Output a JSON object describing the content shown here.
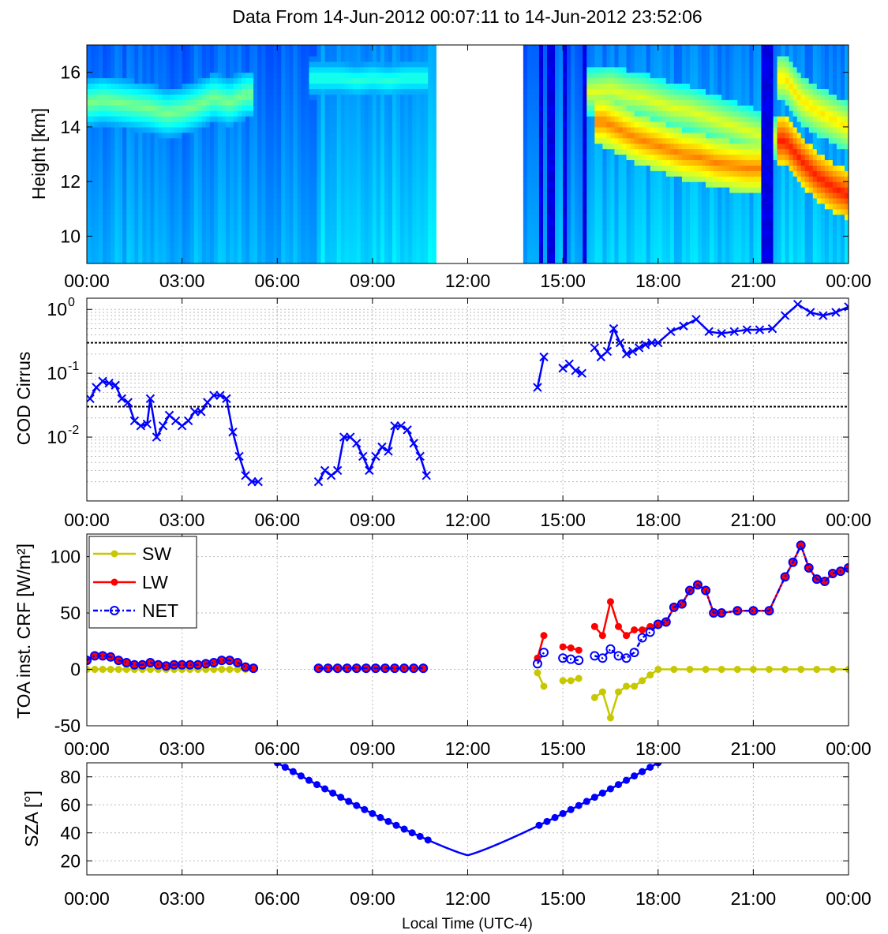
{
  "title": "Data From 14-Jun-2012 00:07:11 to 14-Jun-2012 23:52:06",
  "xlabel": "Local Time (UTC-4)",
  "x_tick_labels": [
    "00:00",
    "03:00",
    "06:00",
    "09:00",
    "12:00",
    "15:00",
    "18:00",
    "21:00",
    "00:00"
  ],
  "colors": {
    "blue": "#0000ff",
    "red": "#ff0000",
    "olive": "#c8c800"
  },
  "chart_data": [
    {
      "type": "heatmap",
      "ylabel": "Height [km]",
      "xlim_hours": [
        0,
        24
      ],
      "ylim": [
        9,
        17
      ],
      "y_ticks": [
        10,
        12,
        14,
        16
      ],
      "missing_interval_hours": [
        11.0,
        13.8
      ],
      "colormap": "jet",
      "cloud_layers": [
        {
          "t": [
            0.1,
            0.5,
            1.0,
            1.5,
            2.0,
            2.5,
            3.0,
            3.5,
            4.0,
            4.5,
            5.0
          ],
          "z": [
            14.9,
            15.0,
            14.9,
            14.8,
            14.7,
            14.5,
            14.6,
            14.8,
            15.1,
            14.9,
            15.2
          ],
          "v": 0.5
        },
        {
          "t": [
            7.3,
            8.0,
            8.5,
            9.0,
            9.5,
            10.0,
            10.5
          ],
          "z": [
            15.8,
            15.8,
            15.7,
            15.8,
            15.7,
            15.8,
            15.8
          ],
          "v": 0.42
        },
        {
          "t": [
            16.3,
            16.8,
            17.3,
            17.8,
            18.3,
            18.8,
            19.3,
            19.8,
            20.3,
            20.8,
            21.3
          ],
          "z": [
            14.2,
            13.9,
            13.6,
            13.4,
            13.2,
            13.0,
            12.9,
            12.7,
            12.6,
            12.5,
            12.5
          ],
          "v": 0.75
        },
        {
          "t": [
            16.0,
            16.5,
            17.0,
            17.5,
            18.0,
            18.5,
            19.0,
            19.5,
            20.0,
            20.5,
            21.0,
            21.5
          ],
          "z": [
            15.3,
            15.4,
            15.2,
            15.1,
            14.9,
            14.7,
            14.6,
            14.4,
            14.2,
            14.0,
            13.8,
            13.6
          ],
          "v": 0.6
        },
        {
          "t": [
            22.0,
            22.5,
            23.0,
            23.5,
            24.0
          ],
          "z": [
            13.5,
            12.8,
            12.2,
            11.8,
            11.5
          ],
          "v": 0.85
        },
        {
          "t": [
            22.0,
            22.5,
            23.0,
            23.5,
            24.0
          ],
          "z": [
            15.8,
            15.0,
            14.6,
            14.3,
            14.0
          ],
          "v": 0.65
        }
      ]
    },
    {
      "type": "line",
      "ylabel": "COD Cirrus",
      "yscale": "log",
      "ylim": [
        0.001,
        1.5
      ],
      "y_ticks": [
        0.01,
        0.1,
        1
      ],
      "y_tick_base": "10",
      "y_tick_exponents": [
        "-2",
        "-1",
        "0"
      ],
      "reference_lines": [
        0.03,
        0.3
      ],
      "marker": "x",
      "color": "#0000ff",
      "series": [
        {
          "x": [
            0.1,
            0.3,
            0.5,
            0.7,
            0.9,
            1.1,
            1.3,
            1.5,
            1.7,
            1.9,
            2.0,
            2.2,
            2.4,
            2.6,
            2.8,
            3.0,
            3.2,
            3.4,
            3.6,
            3.8,
            4.0,
            4.2,
            4.4,
            4.6,
            4.8,
            5.0,
            5.2,
            5.4
          ],
          "y": [
            0.04,
            0.06,
            0.075,
            0.07,
            0.065,
            0.04,
            0.035,
            0.018,
            0.015,
            0.016,
            0.04,
            0.01,
            0.015,
            0.022,
            0.018,
            0.015,
            0.018,
            0.025,
            0.025,
            0.035,
            0.045,
            0.045,
            0.04,
            0.012,
            0.005,
            0.0025,
            0.002,
            0.002
          ]
        },
        {
          "x": [
            7.3,
            7.5,
            7.7,
            7.9,
            8.1,
            8.3,
            8.5,
            8.7,
            8.9,
            9.1,
            9.3,
            9.5,
            9.7,
            9.9,
            10.1,
            10.3,
            10.5,
            10.7
          ],
          "y": [
            0.002,
            0.003,
            0.0025,
            0.003,
            0.01,
            0.01,
            0.008,
            0.005,
            0.003,
            0.005,
            0.007,
            0.006,
            0.015,
            0.015,
            0.013,
            0.008,
            0.005,
            0.0025
          ]
        },
        {
          "x": [
            14.2,
            14.4
          ],
          "y": [
            0.06,
            0.18
          ]
        },
        {
          "x": [
            15.0,
            15.2,
            15.4,
            15.6
          ],
          "y": [
            0.12,
            0.14,
            0.11,
            0.1
          ]
        },
        {
          "x": [
            16.0,
            16.2,
            16.4,
            16.6,
            16.8,
            17.0,
            17.2,
            17.4,
            17.6,
            17.8,
            18.0,
            18.4,
            18.8,
            19.2,
            19.6,
            20.0,
            20.4,
            20.8,
            21.2,
            21.6,
            22.0,
            22.4,
            22.8,
            23.2,
            23.6,
            24.0
          ],
          "y": [
            0.25,
            0.18,
            0.22,
            0.5,
            0.3,
            0.2,
            0.22,
            0.25,
            0.28,
            0.3,
            0.3,
            0.45,
            0.55,
            0.7,
            0.45,
            0.42,
            0.45,
            0.48,
            0.48,
            0.5,
            0.8,
            1.2,
            0.9,
            0.8,
            0.9,
            1.1
          ]
        }
      ]
    },
    {
      "type": "line",
      "ylabel": "TOA inst. CRF [W/m²]",
      "ylim": [
        -50,
        120
      ],
      "y_ticks": [
        -50,
        0,
        50,
        100
      ],
      "legend": {
        "placement": "top-left",
        "entries": [
          "SW",
          "LW",
          "NET"
        ]
      },
      "series": [
        {
          "name": "SW",
          "color": "#c8c800",
          "marker": "filled-circle",
          "linestyle": "solid",
          "segments": [
            {
              "x": [
                0.0,
                0.25,
                0.5,
                0.75,
                1.0,
                1.25,
                1.5,
                1.75,
                2.0,
                2.25,
                2.5,
                2.75,
                3.0,
                3.25,
                3.5,
                3.75,
                4.0,
                4.25,
                4.5,
                4.75,
                5.0,
                5.25
              ],
              "y": [
                0,
                0,
                0,
                0,
                0,
                0,
                0,
                0,
                0,
                0,
                0,
                0,
                0,
                0,
                0,
                0,
                0,
                0,
                0,
                0,
                0,
                0
              ]
            },
            {
              "x": [
                7.3,
                7.6,
                7.9,
                8.2,
                8.5,
                8.8,
                9.1,
                9.4,
                9.7,
                10.0,
                10.3,
                10.6
              ],
              "y": [
                0,
                0,
                0,
                0,
                0,
                0,
                0,
                0,
                0,
                0,
                0,
                0
              ]
            },
            {
              "x": [
                14.2,
                14.4
              ],
              "y": [
                -3,
                -15
              ]
            },
            {
              "x": [
                15.0,
                15.25,
                15.5
              ],
              "y": [
                -10,
                -10,
                -8
              ]
            },
            {
              "x": [
                16.0,
                16.25,
                16.5,
                16.75,
                17.0,
                17.25,
                17.5,
                17.75,
                18.0,
                18.5,
                19.0,
                19.5,
                20.0,
                20.5,
                21.0,
                21.5,
                22.0,
                22.5,
                23.0,
                23.5,
                24.0
              ],
              "y": [
                -25,
                -20,
                -43,
                -20,
                -15,
                -15,
                -10,
                -5,
                0,
                0,
                0,
                0,
                0,
                0,
                0,
                0,
                0,
                0,
                0,
                0,
                0
              ]
            }
          ]
        },
        {
          "name": "LW",
          "color": "#ff0000",
          "marker": "filled-circle",
          "linestyle": "solid",
          "segments": [
            {
              "x": [
                0.0,
                0.25,
                0.5,
                0.75,
                1.0,
                1.25,
                1.5,
                1.75,
                2.0,
                2.25,
                2.5,
                2.75,
                3.0,
                3.25,
                3.5,
                3.75,
                4.0,
                4.25,
                4.5,
                4.75,
                5.0,
                5.25
              ],
              "y": [
                8,
                12,
                12,
                11,
                8,
                6,
                4,
                4,
                6,
                4,
                3,
                4,
                4,
                4,
                4,
                5,
                6,
                8,
                8,
                6,
                2,
                1
              ]
            },
            {
              "x": [
                7.3,
                7.6,
                7.9,
                8.2,
                8.5,
                8.8,
                9.1,
                9.4,
                9.7,
                10.0,
                10.3,
                10.6
              ],
              "y": [
                1,
                1,
                1,
                1,
                1,
                1,
                1,
                1,
                1,
                1,
                1,
                1
              ]
            },
            {
              "x": [
                14.2,
                14.4
              ],
              "y": [
                10,
                30
              ]
            },
            {
              "x": [
                15.0,
                15.25,
                15.5
              ],
              "y": [
                20,
                19,
                17
              ]
            },
            {
              "x": [
                16.0,
                16.25,
                16.5,
                16.75,
                17.0,
                17.25,
                17.5,
                17.75,
                18.0,
                18.25,
                18.5,
                18.75,
                19.0,
                19.25,
                19.5,
                19.75,
                20.0,
                20.5,
                21.0,
                21.5,
                22.0,
                22.25,
                22.5,
                22.75,
                23.0,
                23.25,
                23.5,
                23.75,
                24.0
              ],
              "y": [
                38,
                30,
                60,
                38,
                30,
                35,
                35,
                38,
                40,
                42,
                55,
                58,
                70,
                75,
                70,
                50,
                50,
                52,
                52,
                52,
                82,
                95,
                110,
                90,
                80,
                78,
                85,
                87,
                90
              ]
            }
          ]
        },
        {
          "name": "NET",
          "color": "#0000ff",
          "marker": "open-circle",
          "linestyle": "dash-dot",
          "segments": [
            {
              "x": [
                0.0,
                0.25,
                0.5,
                0.75,
                1.0,
                1.25,
                1.5,
                1.75,
                2.0,
                2.25,
                2.5,
                2.75,
                3.0,
                3.25,
                3.5,
                3.75,
                4.0,
                4.25,
                4.5,
                4.75,
                5.0,
                5.25
              ],
              "y": [
                8,
                12,
                12,
                11,
                8,
                6,
                4,
                4,
                6,
                4,
                3,
                4,
                4,
                4,
                4,
                5,
                6,
                8,
                8,
                6,
                2,
                1
              ]
            },
            {
              "x": [
                7.3,
                7.6,
                7.9,
                8.2,
                8.5,
                8.8,
                9.1,
                9.4,
                9.7,
                10.0,
                10.3,
                10.6
              ],
              "y": [
                1,
                1,
                1,
                1,
                1,
                1,
                1,
                1,
                1,
                1,
                1,
                1
              ]
            },
            {
              "x": [
                14.2,
                14.4
              ],
              "y": [
                5,
                15
              ]
            },
            {
              "x": [
                15.0,
                15.25,
                15.5
              ],
              "y": [
                10,
                9,
                8
              ]
            },
            {
              "x": [
                16.0,
                16.25,
                16.5,
                16.75,
                17.0,
                17.25,
                17.5,
                17.75,
                18.0,
                18.25,
                18.5,
                18.75,
                19.0,
                19.25,
                19.5,
                19.75,
                20.0,
                20.5,
                21.0,
                21.5,
                22.0,
                22.25,
                22.5,
                22.75,
                23.0,
                23.25,
                23.5,
                23.75,
                24.0
              ],
              "y": [
                12,
                10,
                18,
                12,
                10,
                15,
                28,
                33,
                40,
                42,
                55,
                58,
                70,
                75,
                70,
                50,
                50,
                52,
                52,
                52,
                82,
                95,
                110,
                90,
                80,
                78,
                85,
                87,
                90
              ]
            }
          ]
        }
      ]
    },
    {
      "type": "line",
      "ylabel": "SZA [°]",
      "ylim": [
        10,
        90
      ],
      "y_ticks": [
        20,
        40,
        60,
        80
      ],
      "color": "#0000ff",
      "marker": "filled-circle",
      "sunrise_hours": 6.0,
      "sunset_hours": 18.0,
      "noon_hours": 12.0,
      "min_sza": 24,
      "max_sza": 90,
      "gap_hours": [
        10.8,
        14.2
      ]
    }
  ]
}
